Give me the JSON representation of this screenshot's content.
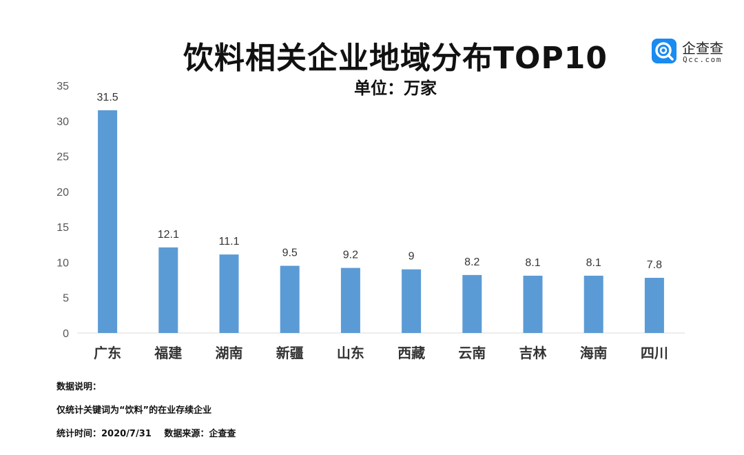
{
  "header": {
    "title": "饮料相关企业地域分布TOP10",
    "subtitle": "单位：万家"
  },
  "logo": {
    "icon": "qcc-logo-icon",
    "name": "企查查",
    "sub": "Qcc.com",
    "color": "#1a8bf0"
  },
  "chart_data": {
    "type": "bar",
    "title": "饮料相关企业地域分布TOP10",
    "subtitle": "单位：万家",
    "xlabel": "",
    "ylabel": "",
    "categories": [
      "广东",
      "福建",
      "湖南",
      "新疆",
      "山东",
      "西藏",
      "云南",
      "吉林",
      "海南",
      "四川"
    ],
    "values": [
      31.5,
      12.1,
      11.1,
      9.5,
      9.2,
      9,
      8.2,
      8.1,
      8.1,
      7.8
    ],
    "value_labels": [
      "31.5",
      "12.1",
      "11.1",
      "9.5",
      "9.2",
      "9",
      "8.2",
      "8.1",
      "8.1",
      "7.8"
    ],
    "ylim": [
      0,
      35
    ],
    "yticks": [
      0,
      5,
      10,
      15,
      20,
      25,
      30,
      35
    ],
    "grid": false,
    "legend": "none",
    "bar_color": "#5b9bd5"
  },
  "notes": {
    "heading": "数据说明：",
    "line1": "仅统计关键词为“饮料”的在业存续企业",
    "time": "统计时间：2020/7/31",
    "source": "数据来源：企查查"
  }
}
